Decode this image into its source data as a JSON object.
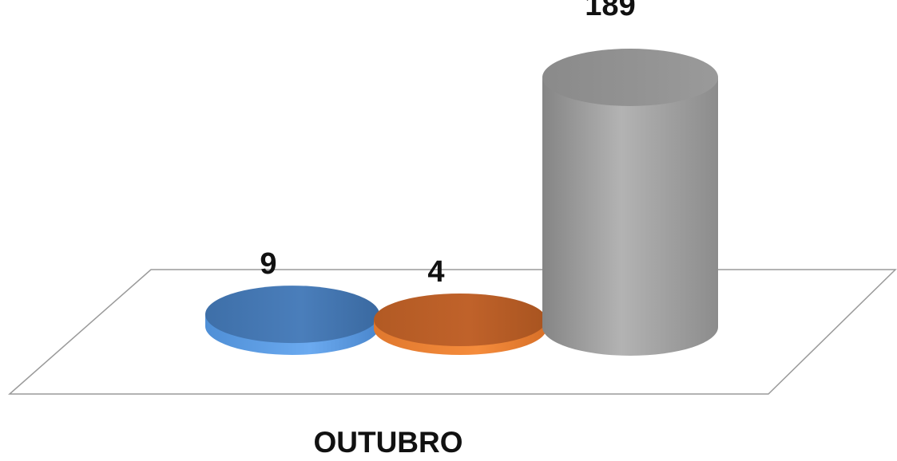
{
  "chart_data": {
    "type": "bar",
    "style": "3d-cylinder",
    "title": "",
    "xlabel": "",
    "ylabel": "",
    "categories": [
      "OUTUBRO"
    ],
    "series": [
      {
        "values": [
          9
        ],
        "color": "#4A7EBB"
      },
      {
        "values": [
          4
        ],
        "color": "#C0622A"
      },
      {
        "values": [
          189
        ],
        "color": "#A6A6A6"
      }
    ],
    "data_labels": [
      "9",
      "4",
      "189"
    ],
    "category_label": "OUTUBRO",
    "legend": "none",
    "grid": false,
    "ylim": [
      0,
      189
    ]
  }
}
